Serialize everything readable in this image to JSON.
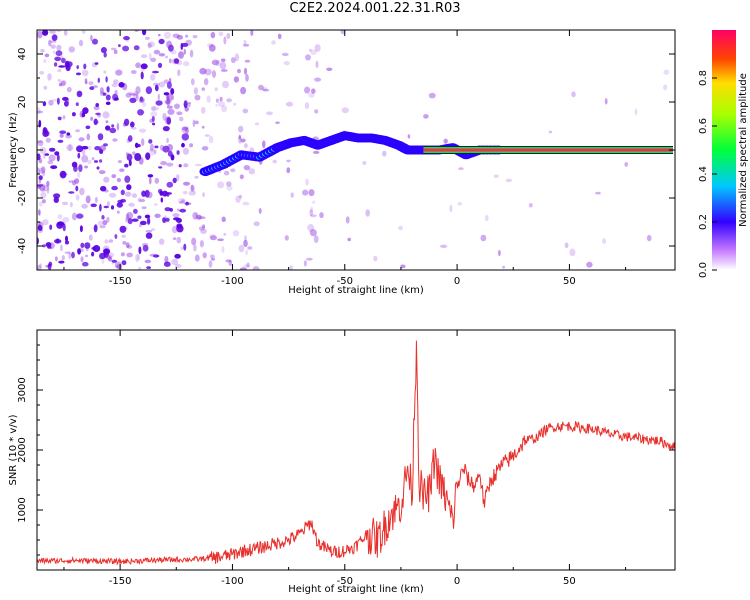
{
  "title": "C2E2.2024.001.22.31.R03",
  "colors": {
    "snr_line": "#e8302c",
    "axis": "#000000",
    "spectrum_noise": "#8a2be2",
    "track_core": "#ff2a3a"
  },
  "chart_data": [
    {
      "type": "heatmap",
      "title": "C2E2.2024.001.22.31.R03",
      "xlabel": "Height of straight line (km)",
      "ylabel": "Frequency (Hz)",
      "xlim": [
        -187,
        97
      ],
      "ylim": [
        -50,
        50
      ],
      "xticks": [
        -150,
        -100,
        -50,
        0,
        50
      ],
      "yticks": [
        -40,
        -20,
        0,
        20,
        40
      ],
      "colorbar": {
        "label": "Normalized spectral amplitude",
        "range": [
          0.0,
          1.0
        ],
        "ticks": [
          0.0,
          0.2,
          0.4,
          0.6,
          0.8
        ],
        "tick_labels": [
          "0.0",
          "0.2",
          "0.4",
          "0.6",
          "0.8"
        ]
      },
      "track": {
        "x": [
          -112,
          -104,
          -96,
          -88,
          -80,
          -74,
          -68,
          -62,
          -56,
          -50,
          -44,
          -38,
          -32,
          -26,
          -22,
          -18,
          -14,
          -8,
          -2,
          4,
          10,
          20,
          40,
          60,
          80,
          95
        ],
        "y": [
          -9,
          -6,
          -2,
          -3,
          1,
          3,
          4,
          2,
          4,
          6,
          5,
          5,
          4,
          2,
          0,
          0,
          0,
          0,
          1,
          -2,
          0,
          0,
          0,
          0,
          0,
          0
        ]
      }
    },
    {
      "type": "line",
      "xlabel": "Height of straight line (km)",
      "ylabel": "SNR (10 * v/v)",
      "xlim": [
        -187,
        97
      ],
      "ylim": [
        0,
        4000
      ],
      "xticks": [
        -150,
        -100,
        -50,
        0,
        50
      ],
      "yticks": [
        1000,
        2000,
        3000
      ],
      "series": [
        {
          "name": "SNR",
          "x": [
            -187,
            -170,
            -150,
            -130,
            -115,
            -105,
            -100,
            -95,
            -90,
            -85,
            -80,
            -75,
            -70,
            -65,
            -62,
            -58,
            -55,
            -50,
            -45,
            -40,
            -35,
            -30,
            -25,
            -22,
            -20,
            -19,
            -18,
            -17,
            -15,
            -12,
            -10,
            -8,
            -5,
            -2,
            0,
            3,
            5,
            8,
            10,
            12,
            15,
            20,
            25,
            30,
            35,
            40,
            45,
            50,
            60,
            70,
            80,
            90,
            97
          ],
          "y": [
            150,
            160,
            140,
            170,
            180,
            220,
            260,
            320,
            350,
            400,
            450,
            500,
            600,
            800,
            450,
            350,
            300,
            320,
            400,
            600,
            500,
            900,
            1100,
            1700,
            1300,
            2700,
            3900,
            1500,
            1200,
            1300,
            1900,
            1500,
            1200,
            800,
            1400,
            1700,
            1500,
            1400,
            1650,
            1100,
            1500,
            1750,
            1900,
            2150,
            2200,
            2350,
            2400,
            2400,
            2350,
            2250,
            2200,
            2150,
            2050
          ]
        }
      ]
    }
  ]
}
